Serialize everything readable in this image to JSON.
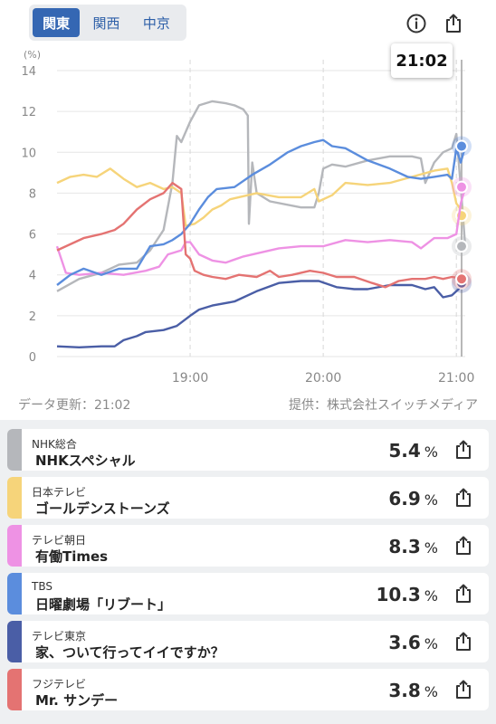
{
  "region_tabs": [
    {
      "label": "関東",
      "active": true
    },
    {
      "label": "関西",
      "active": false
    },
    {
      "label": "中京",
      "active": false
    }
  ],
  "icons": {
    "info": "info-circle-icon",
    "share": "share-icon"
  },
  "current_time": "21:02",
  "footer": {
    "updated": "データ更新：21:02",
    "provider": "提供：株式会社スイッチメディア"
  },
  "chart_data": {
    "type": "line",
    "ylabel": "(%)",
    "ylim": [
      0,
      14
    ],
    "y_ticks": [
      "0",
      "2",
      "4",
      "6",
      "8",
      "10",
      "12",
      "14"
    ],
    "x_ticks": [
      {
        "t": 60,
        "label": "19:00"
      },
      {
        "t": 120,
        "label": "20:00"
      },
      {
        "t": 180,
        "label": "21:00"
      }
    ],
    "x_unit": "minutes after 18:00",
    "xlim": [
      0,
      184
    ],
    "grid": true,
    "series": [
      {
        "name": "NHKスペシャル",
        "color": "#b5b7bb",
        "points": [
          [
            0,
            3.2
          ],
          [
            10,
            3.8
          ],
          [
            20,
            4.1
          ],
          [
            28,
            4.5
          ],
          [
            36,
            4.6
          ],
          [
            42,
            5.2
          ],
          [
            48,
            6.2
          ],
          [
            52,
            8.5
          ],
          [
            54,
            10.8
          ],
          [
            56,
            10.5
          ],
          [
            60,
            11.5
          ],
          [
            64,
            12.3
          ],
          [
            70,
            12.5
          ],
          [
            76,
            12.4
          ],
          [
            80,
            12.3
          ],
          [
            84,
            12.1
          ],
          [
            86,
            11.8
          ],
          [
            86.5,
            6.5
          ],
          [
            88,
            9.5
          ],
          [
            90,
            8.0
          ],
          [
            96,
            7.6
          ],
          [
            110,
            7.3
          ],
          [
            116,
            7.3
          ],
          [
            118,
            8.0
          ],
          [
            120,
            9.2
          ],
          [
            124,
            9.4
          ],
          [
            130,
            9.3
          ],
          [
            140,
            9.6
          ],
          [
            150,
            9.8
          ],
          [
            160,
            9.8
          ],
          [
            164,
            9.7
          ],
          [
            166,
            8.5
          ],
          [
            170,
            9.5
          ],
          [
            174,
            10.0
          ],
          [
            178,
            10.2
          ],
          [
            180,
            10.9
          ],
          [
            182,
            8.3
          ],
          [
            184,
            5.4
          ]
        ]
      },
      {
        "name": "ゴールデンストーンズ",
        "color": "#f6d47a",
        "points": [
          [
            0,
            8.5
          ],
          [
            6,
            8.8
          ],
          [
            12,
            8.9
          ],
          [
            18,
            8.8
          ],
          [
            24,
            9.2
          ],
          [
            30,
            8.7
          ],
          [
            36,
            8.3
          ],
          [
            42,
            8.5
          ],
          [
            48,
            8.2
          ],
          [
            52,
            8.3
          ],
          [
            56,
            8.0
          ],
          [
            58,
            6.4
          ],
          [
            62,
            6.5
          ],
          [
            66,
            6.8
          ],
          [
            70,
            7.2
          ],
          [
            74,
            7.4
          ],
          [
            78,
            7.7
          ],
          [
            82,
            7.8
          ],
          [
            90,
            8.0
          ],
          [
            100,
            7.8
          ],
          [
            110,
            7.8
          ],
          [
            116,
            8.2
          ],
          [
            118,
            7.6
          ],
          [
            124,
            7.9
          ],
          [
            130,
            8.5
          ],
          [
            140,
            8.4
          ],
          [
            150,
            8.5
          ],
          [
            160,
            8.8
          ],
          [
            170,
            9.1
          ],
          [
            176,
            9.2
          ],
          [
            178,
            8.5
          ],
          [
            180,
            7.5
          ],
          [
            184,
            6.9
          ]
        ]
      },
      {
        "name": "有働Times",
        "color": "#ee92e4",
        "points": [
          [
            0,
            5.4
          ],
          [
            4,
            4.1
          ],
          [
            10,
            4.0
          ],
          [
            20,
            4.1
          ],
          [
            30,
            4.0
          ],
          [
            40,
            4.2
          ],
          [
            46,
            4.4
          ],
          [
            50,
            5.0
          ],
          [
            56,
            5.2
          ],
          [
            58,
            5.6
          ],
          [
            60,
            5.6
          ],
          [
            64,
            5.0
          ],
          [
            70,
            4.7
          ],
          [
            76,
            4.6
          ],
          [
            84,
            4.9
          ],
          [
            92,
            5.1
          ],
          [
            100,
            5.3
          ],
          [
            110,
            5.4
          ],
          [
            120,
            5.4
          ],
          [
            130,
            5.7
          ],
          [
            140,
            5.6
          ],
          [
            150,
            5.7
          ],
          [
            160,
            5.6
          ],
          [
            164,
            5.3
          ],
          [
            170,
            5.8
          ],
          [
            176,
            5.8
          ],
          [
            180,
            6.0
          ],
          [
            182,
            7.5
          ],
          [
            184,
            8.3
          ]
        ]
      },
      {
        "name": "日曜劇場「リブート」",
        "color": "#5b8ddd",
        "points": [
          [
            0,
            3.5
          ],
          [
            6,
            4.0
          ],
          [
            12,
            4.3
          ],
          [
            20,
            4.0
          ],
          [
            28,
            4.3
          ],
          [
            36,
            4.3
          ],
          [
            42,
            5.4
          ],
          [
            48,
            5.5
          ],
          [
            52,
            5.7
          ],
          [
            56,
            6.0
          ],
          [
            60,
            6.5
          ],
          [
            64,
            7.2
          ],
          [
            68,
            7.8
          ],
          [
            72,
            8.2
          ],
          [
            80,
            8.3
          ],
          [
            88,
            8.9
          ],
          [
            96,
            9.4
          ],
          [
            104,
            10.0
          ],
          [
            110,
            10.3
          ],
          [
            116,
            10.5
          ],
          [
            120,
            10.6
          ],
          [
            124,
            10.3
          ],
          [
            130,
            10.2
          ],
          [
            140,
            9.6
          ],
          [
            150,
            9.2
          ],
          [
            158,
            8.8
          ],
          [
            164,
            8.7
          ],
          [
            170,
            8.8
          ],
          [
            176,
            8.9
          ],
          [
            178,
            8.7
          ],
          [
            180,
            10.2
          ],
          [
            182,
            9.5
          ],
          [
            184,
            10.3
          ]
        ]
      },
      {
        "name": "家、ついて行ってイイですか？",
        "color": "#4a5ea6",
        "points": [
          [
            0,
            0.5
          ],
          [
            10,
            0.45
          ],
          [
            20,
            0.5
          ],
          [
            26,
            0.5
          ],
          [
            30,
            0.8
          ],
          [
            36,
            1.0
          ],
          [
            40,
            1.2
          ],
          [
            48,
            1.3
          ],
          [
            54,
            1.5
          ],
          [
            60,
            2.0
          ],
          [
            64,
            2.3
          ],
          [
            70,
            2.5
          ],
          [
            80,
            2.7
          ],
          [
            90,
            3.2
          ],
          [
            100,
            3.6
          ],
          [
            110,
            3.7
          ],
          [
            118,
            3.7
          ],
          [
            126,
            3.4
          ],
          [
            134,
            3.3
          ],
          [
            140,
            3.3
          ],
          [
            150,
            3.5
          ],
          [
            160,
            3.5
          ],
          [
            166,
            3.3
          ],
          [
            170,
            3.4
          ],
          [
            174,
            2.9
          ],
          [
            178,
            3.0
          ],
          [
            180,
            3.2
          ],
          [
            184,
            3.6
          ]
        ]
      },
      {
        "name": "Mr. サンデー",
        "color": "#e47372",
        "points": [
          [
            0,
            5.2
          ],
          [
            6,
            5.5
          ],
          [
            12,
            5.8
          ],
          [
            20,
            6.0
          ],
          [
            26,
            6.2
          ],
          [
            30,
            6.5
          ],
          [
            36,
            7.2
          ],
          [
            42,
            7.7
          ],
          [
            48,
            8.0
          ],
          [
            52,
            8.5
          ],
          [
            56,
            8.2
          ],
          [
            58,
            5.0
          ],
          [
            60,
            4.8
          ],
          [
            62,
            4.2
          ],
          [
            66,
            4.0
          ],
          [
            70,
            3.9
          ],
          [
            76,
            3.8
          ],
          [
            82,
            4.0
          ],
          [
            90,
            3.9
          ],
          [
            96,
            4.2
          ],
          [
            100,
            3.9
          ],
          [
            106,
            4.0
          ],
          [
            114,
            4.2
          ],
          [
            120,
            4.1
          ],
          [
            126,
            3.9
          ],
          [
            134,
            3.9
          ],
          [
            142,
            3.6
          ],
          [
            148,
            3.4
          ],
          [
            154,
            3.7
          ],
          [
            160,
            3.8
          ],
          [
            166,
            3.8
          ],
          [
            170,
            3.9
          ],
          [
            174,
            3.8
          ],
          [
            178,
            3.9
          ],
          [
            184,
            3.8
          ]
        ]
      }
    ]
  },
  "programs": [
    {
      "channel": "NHK総合",
      "title": "NHKスペシャル",
      "value": "5.4",
      "unit": "%",
      "color": "#b5b7bb"
    },
    {
      "channel": "日本テレビ",
      "title": "ゴールデンストーンズ",
      "value": "6.9",
      "unit": "%",
      "color": "#f6d47a"
    },
    {
      "channel": "テレビ朝日",
      "title": "有働Times",
      "value": "8.3",
      "unit": "%",
      "color": "#ee92e4"
    },
    {
      "channel": "TBS",
      "title": "日曜劇場「リブート」",
      "value": "10.3",
      "unit": "%",
      "color": "#5b8ddd"
    },
    {
      "channel": "テレビ東京",
      "title": "家、ついて行ってイイですか？",
      "value": "3.6",
      "unit": "%",
      "color": "#4a5ea6"
    },
    {
      "channel": "フジテレビ",
      "title": "Mr. サンデー",
      "value": "3.8",
      "unit": "%",
      "color": "#e47372"
    }
  ]
}
